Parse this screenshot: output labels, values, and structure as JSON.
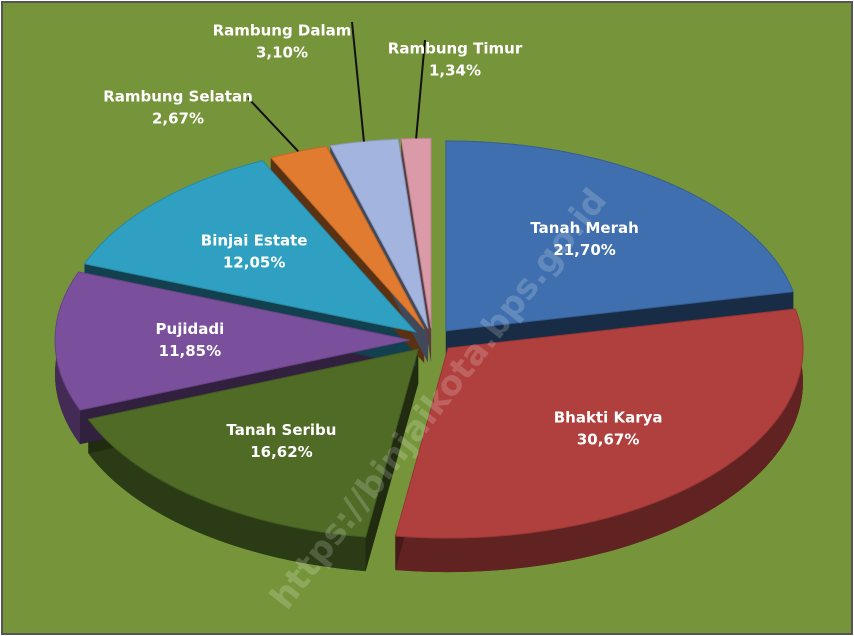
{
  "chart_data": {
    "type": "pie",
    "categories": [
      "Tanah Merah",
      "Bhakti Karya",
      "Tanah Seribu",
      "Pujidadi",
      "Binjai Estate",
      "Rambung Selatan",
      "Rambung Dalam",
      "Rambung Timur"
    ],
    "values": [
      21.7,
      30.67,
      16.62,
      11.85,
      12.05,
      2.67,
      3.1,
      1.34
    ],
    "value_labels": [
      "21,70%",
      "30,67%",
      "16,62%",
      "11,85%",
      "12,05%",
      "2,67%",
      "3,10%",
      "1,34%"
    ],
    "colors": [
      "#3f6fae",
      "#b0403e",
      "#4f6b26",
      "#7a4f9c",
      "#2fa0c2",
      "#e07b30",
      "#a3b5df",
      "#db9aa8"
    ],
    "watermark": "https://binjaikota.bps.go.id"
  }
}
